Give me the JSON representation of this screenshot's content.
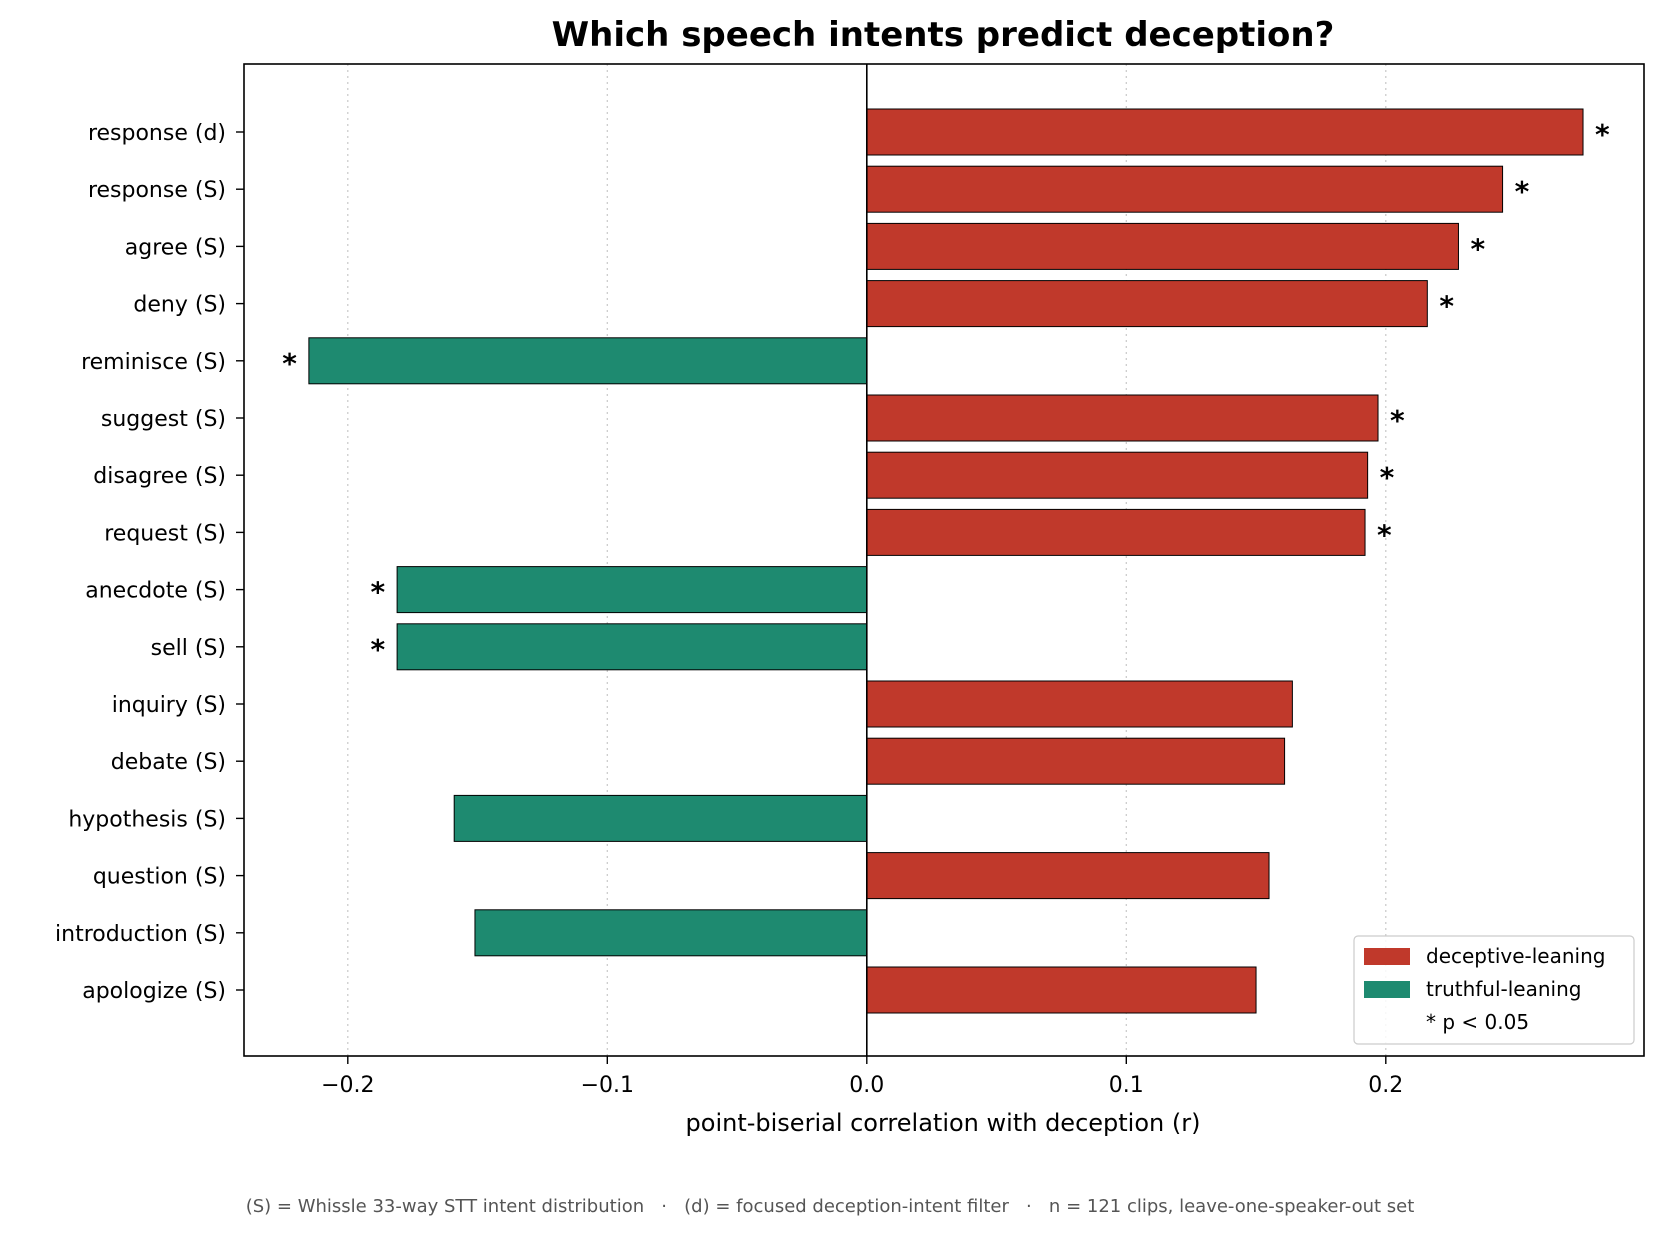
{
  "chart_data": {
    "type": "bar",
    "orientation": "horizontal",
    "title": "Which speech intents predict deception?",
    "xlabel": "point-biserial correlation with deception  (r)",
    "ylabel": "",
    "xlim": [
      -0.24,
      0.2995
    ],
    "xticks": [
      -0.2,
      -0.1,
      0.0,
      0.1,
      0.2
    ],
    "xtick_labels": [
      "−0.2",
      "−0.1",
      "0.0",
      "0.1",
      "0.2"
    ],
    "grid": "vertical dotted",
    "categories": [
      "response  (d)",
      "response  (S)",
      "agree  (S)",
      "deny  (S)",
      "reminisce  (S)",
      "suggest  (S)",
      "disagree  (S)",
      "request  (S)",
      "anecdote  (S)",
      "sell  (S)",
      "inquiry  (S)",
      "debate  (S)",
      "hypothesis  (S)",
      "question  (S)",
      "introduction  (S)",
      "apologize  (S)"
    ],
    "values": [
      0.276,
      0.245,
      0.228,
      0.216,
      -0.215,
      0.197,
      0.193,
      0.192,
      -0.181,
      -0.181,
      0.164,
      0.161,
      -0.159,
      0.155,
      -0.151,
      0.15
    ],
    "significant": [
      true,
      true,
      true,
      true,
      true,
      true,
      true,
      true,
      true,
      true,
      false,
      false,
      false,
      false,
      false,
      false
    ],
    "sig_marker": "*",
    "colors": {
      "deceptive": "#c0392b",
      "truthful": "#1e8a70"
    },
    "legend": {
      "placement": "bottom-right",
      "entries": [
        {
          "label": "deceptive-leaning",
          "color": "#c0392b"
        },
        {
          "label": "truthful-leaning",
          "color": "#1e8a70"
        },
        {
          "label": "* p < 0.05",
          "color": ""
        }
      ]
    },
    "footnote": "(S) = Whissle 33-way STT intent distribution   ·   (d) = focused deception-intent filter   ·   n = 121 clips, leave-one-speaker-out set"
  }
}
